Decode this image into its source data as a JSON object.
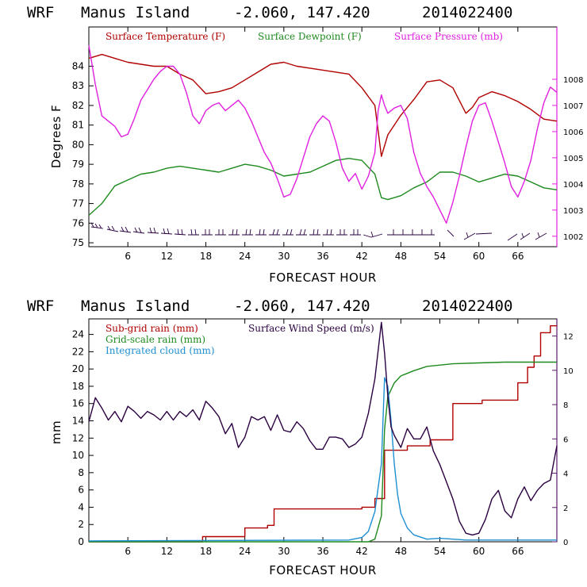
{
  "charts": {
    "top": {
      "title": {
        "model": "WRF",
        "location": "Manus Island",
        "coords": "-2.060, 147.420",
        "init": "2014022400"
      },
      "ylabel_left": "Degrees F",
      "xlabel": "FORECAST HOUR",
      "legend": [
        "Surface Temperature (F)",
        "Surface Dewpoint (F)",
        "Surface Pressure (mb)"
      ],
      "x_ticks": [
        "6",
        "12",
        "18",
        "24",
        "30",
        "36",
        "42",
        "48",
        "54",
        "60",
        "66"
      ],
      "y_left_ticks": [
        "75",
        "76",
        "77",
        "78",
        "79",
        "80",
        "81",
        "82",
        "83",
        "84"
      ],
      "y_right_ticks": [
        "1002",
        "1003",
        "1004",
        "1005",
        "1006",
        "1007",
        "1008"
      ]
    },
    "bottom": {
      "title": {
        "model": "WRF",
        "location": "Manus Island",
        "coords": "-2.060, 147.420",
        "init": "2014022400"
      },
      "ylabel_left": "mm",
      "xlabel": "FORECAST HOUR",
      "legend": [
        "Sub-grid rain (mm)",
        "Surface Wind Speed (m/s)",
        "Grid-scale rain (mm)",
        "Integrated cloud (mm)"
      ],
      "x_ticks": [
        "6",
        "12",
        "18",
        "24",
        "30",
        "36",
        "42",
        "48",
        "54",
        "60",
        "66"
      ],
      "y_left_ticks": [
        "0",
        "2",
        "4",
        "6",
        "8",
        "10",
        "12",
        "14",
        "16",
        "18",
        "20",
        "22",
        "24"
      ],
      "y_right_ticks": [
        "0",
        "2",
        "4",
        "6",
        "8",
        "10",
        "12"
      ]
    }
  },
  "colors": {
    "temperature": "#b00000",
    "dewpoint": "#1e8a1e",
    "pressure": "#e020e0",
    "subgrid": "#b00000",
    "wind": "#2a0040",
    "gridscale": "#1e8a1e",
    "cloud": "#1e8fd0",
    "axis_right_top": "#e020e0",
    "axis_right_bottom": "#5a1a6a"
  },
  "chart_data": [
    {
      "type": "line",
      "title": "WRF  Manus Island  -2.060, 147.420  2014022400",
      "xlabel": "FORECAST HOUR",
      "ylabel": "Degrees F",
      "xlim": [
        0,
        72
      ],
      "ylim": [
        74.8,
        86.0
      ],
      "y2lim": [
        1001.6,
        1010.0
      ],
      "series": [
        {
          "name": "Surface Temperature (F)",
          "axis": "left",
          "x": [
            0,
            2,
            4,
            6,
            8,
            10,
            12,
            14,
            16,
            18,
            20,
            22,
            24,
            26,
            28,
            30,
            32,
            34,
            36,
            38,
            40,
            42,
            44,
            45,
            46,
            48,
            50,
            52,
            54,
            56,
            58,
            59,
            60,
            62,
            64,
            66,
            68,
            70,
            72
          ],
          "y": [
            84.4,
            84.6,
            84.4,
            84.2,
            84.1,
            84.0,
            84.0,
            83.6,
            83.3,
            82.6,
            82.7,
            82.9,
            83.3,
            83.7,
            84.1,
            84.2,
            84.0,
            83.9,
            83.8,
            83.7,
            83.6,
            82.9,
            82.0,
            79.4,
            80.5,
            81.5,
            82.3,
            83.2,
            83.3,
            82.9,
            81.6,
            81.9,
            82.4,
            82.7,
            82.5,
            82.2,
            81.8,
            81.3,
            81.2
          ]
        },
        {
          "name": "Surface Dewpoint (F)",
          "axis": "left",
          "x": [
            0,
            2,
            4,
            6,
            8,
            10,
            12,
            14,
            16,
            18,
            20,
            22,
            24,
            26,
            28,
            30,
            32,
            34,
            36,
            38,
            40,
            42,
            44,
            45,
            46,
            48,
            50,
            52,
            54,
            56,
            58,
            60,
            62,
            64,
            66,
            68,
            70,
            72
          ],
          "y": [
            76.4,
            77.0,
            77.9,
            78.2,
            78.5,
            78.6,
            78.8,
            78.9,
            78.8,
            78.7,
            78.6,
            78.8,
            79.0,
            78.9,
            78.7,
            78.4,
            78.5,
            78.6,
            78.9,
            79.2,
            79.3,
            79.2,
            78.5,
            77.3,
            77.2,
            77.4,
            77.8,
            78.1,
            78.6,
            78.6,
            78.4,
            78.1,
            78.3,
            78.5,
            78.4,
            78.1,
            77.8,
            77.7
          ]
        },
        {
          "name": "Surface Pressure (mb)",
          "axis": "right",
          "x": [
            0,
            1,
            2,
            4,
            5,
            6,
            7,
            8,
            9,
            10,
            11,
            12,
            13,
            14,
            15,
            16,
            17,
            18,
            19,
            20,
            21,
            22,
            23,
            24,
            25,
            26,
            27,
            28,
            29,
            30,
            31,
            32,
            33,
            34,
            35,
            36,
            37,
            38,
            39,
            40,
            41,
            42,
            43,
            44,
            44.5,
            45,
            45.5,
            46,
            47,
            48,
            49,
            50,
            51,
            52,
            53,
            54,
            55,
            56,
            57,
            58,
            59,
            60,
            61,
            62,
            63,
            64,
            65,
            66,
            67,
            68,
            69,
            70,
            71,
            72
          ],
          "y": [
            1009.3,
            1007.8,
            1006.6,
            1006.2,
            1005.8,
            1005.9,
            1006.5,
            1007.2,
            1007.6,
            1008.0,
            1008.3,
            1008.5,
            1008.5,
            1008.2,
            1007.5,
            1006.6,
            1006.3,
            1006.8,
            1007.0,
            1007.1,
            1006.8,
            1007.0,
            1007.2,
            1006.9,
            1006.4,
            1005.8,
            1005.2,
            1004.8,
            1004.2,
            1003.5,
            1003.6,
            1004.2,
            1005.0,
            1005.8,
            1006.3,
            1006.6,
            1006.4,
            1005.6,
            1004.6,
            1004.1,
            1004.4,
            1003.8,
            1004.3,
            1005.2,
            1006.8,
            1007.4,
            1007.0,
            1006.7,
            1006.9,
            1007.0,
            1006.5,
            1005.2,
            1004.4,
            1003.9,
            1003.5,
            1003.0,
            1002.5,
            1003.3,
            1004.3,
            1005.4,
            1006.4,
            1007.0,
            1007.1,
            1006.4,
            1005.6,
            1004.8,
            1003.9,
            1003.5,
            1004.1,
            1004.9,
            1006.1,
            1007.1,
            1007.7,
            1007.5
          ]
        }
      ]
    },
    {
      "type": "line",
      "title": "WRF  Manus Island  -2.060, 147.420  2014022400",
      "xlabel": "FORECAST HOUR",
      "ylabel": "mm",
      "xlim": [
        0,
        72
      ],
      "ylim": [
        0,
        25.8
      ],
      "y2lim": [
        0,
        13.0
      ],
      "series": [
        {
          "name": "Sub-grid rain (mm)",
          "axis": "left",
          "step": true,
          "x": [
            0,
            17.5,
            17.5,
            24,
            24,
            27.5,
            27.5,
            28.5,
            28.5,
            42,
            42,
            44,
            44,
            45.5,
            45.5,
            49,
            49,
            52.5,
            52.5,
            56,
            56,
            60.5,
            60.5,
            66,
            66,
            67.5,
            67.5,
            68.5,
            68.5,
            69.5,
            69.5,
            71,
            71,
            72
          ],
          "y": [
            0,
            0,
            0.6,
            0.6,
            1.6,
            1.6,
            1.9,
            1.9,
            3.8,
            3.8,
            4.0,
            4.0,
            5.0,
            5.0,
            10.6,
            10.6,
            11.1,
            11.1,
            11.8,
            11.8,
            16.0,
            16.0,
            16.4,
            16.4,
            18.4,
            18.4,
            20.2,
            20.2,
            21.5,
            21.5,
            24.2,
            24.2,
            25.0,
            25.0
          ]
        },
        {
          "name": "Grid-scale rain (mm)",
          "axis": "left",
          "x": [
            0,
            43,
            44,
            45,
            45.5,
            46,
            47,
            48,
            50,
            52,
            56,
            60,
            64,
            68,
            72
          ],
          "y": [
            0,
            0,
            0.3,
            3.0,
            13.0,
            16.8,
            18.4,
            19.2,
            19.8,
            20.3,
            20.6,
            20.7,
            20.8,
            20.8,
            20.8
          ]
        },
        {
          "name": "Integrated cloud (mm)",
          "axis": "left",
          "x": [
            0,
            40,
            42,
            43,
            44,
            45,
            45.5,
            46,
            46.5,
            47,
            47.5,
            48,
            49,
            50,
            52,
            54,
            56,
            58,
            60,
            64,
            68,
            72
          ],
          "y": [
            0.1,
            0.2,
            0.5,
            1.2,
            3.5,
            9.0,
            19.0,
            18.0,
            14.0,
            9.0,
            5.5,
            3.3,
            1.6,
            0.8,
            0.3,
            0.4,
            0.3,
            0.2,
            0.2,
            0.2,
            0.2,
            0.2
          ]
        },
        {
          "name": "Surface Wind Speed (m/s)",
          "axis": "right",
          "x": [
            0,
            1,
            2,
            3,
            4,
            5,
            6,
            7,
            8,
            9,
            10,
            11,
            12,
            13,
            14,
            15,
            16,
            17,
            18,
            19,
            20,
            21,
            22,
            23,
            24,
            25,
            26,
            27,
            28,
            29,
            30,
            31,
            32,
            33,
            34,
            35,
            36,
            37,
            38,
            39,
            40,
            41,
            42,
            43,
            44,
            45,
            45.5,
            46,
            46.5,
            47,
            48,
            49,
            50,
            51,
            52,
            53,
            54,
            55,
            56,
            57,
            58,
            59,
            60,
            61,
            62,
            63,
            64,
            65,
            66,
            67,
            68,
            69,
            70,
            71,
            72
          ],
          "y": [
            7.0,
            8.4,
            7.8,
            7.1,
            7.6,
            7.0,
            7.9,
            7.6,
            7.2,
            7.6,
            7.4,
            7.1,
            7.6,
            7.1,
            7.6,
            7.3,
            7.7,
            7.1,
            8.2,
            7.8,
            7.3,
            6.3,
            6.9,
            5.5,
            6.1,
            7.3,
            7.1,
            7.3,
            6.5,
            7.4,
            6.5,
            6.4,
            7.0,
            6.6,
            5.9,
            5.4,
            5.4,
            6.1,
            6.1,
            6.0,
            5.5,
            5.7,
            6.1,
            7.5,
            9.5,
            12.8,
            11.0,
            8.5,
            6.7,
            6.2,
            5.5,
            6.6,
            6.0,
            6.0,
            6.7,
            5.3,
            4.5,
            3.5,
            2.5,
            1.2,
            0.5,
            0.4,
            0.5,
            1.3,
            2.5,
            3.0,
            1.8,
            1.4,
            2.5,
            3.2,
            2.4,
            3.0,
            3.4,
            3.6,
            5.6
          ]
        }
      ]
    }
  ]
}
